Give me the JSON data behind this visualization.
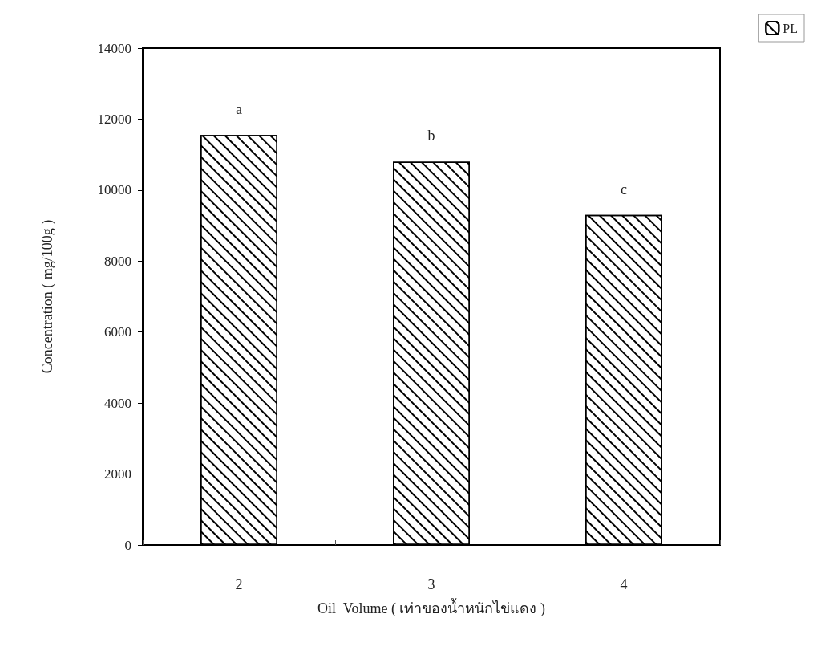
{
  "chart_data": {
    "type": "bar",
    "xlabel": "Oil  Volume ( เท่าของน้ำหนักไข่แดง )",
    "ylabel": "Concentration ( mg/100g )",
    "categories": [
      "2",
      "3",
      "4"
    ],
    "series": [
      {
        "name": "PL",
        "color": "#ffffff",
        "values": [
          11550,
          10800,
          9300
        ]
      }
    ],
    "ylim": [
      0,
      14000
    ],
    "yticks": [
      0,
      2000,
      4000,
      6000,
      8000,
      10000,
      12000,
      14000
    ],
    "grid": false,
    "legend": "top right",
    "annotations": [
      {
        "text": "a",
        "x": "2",
        "y": 11550
      },
      {
        "text": "b",
        "x": "3",
        "y": 10800
      },
      {
        "text": "c",
        "x": "4",
        "y": 9300
      }
    ]
  }
}
